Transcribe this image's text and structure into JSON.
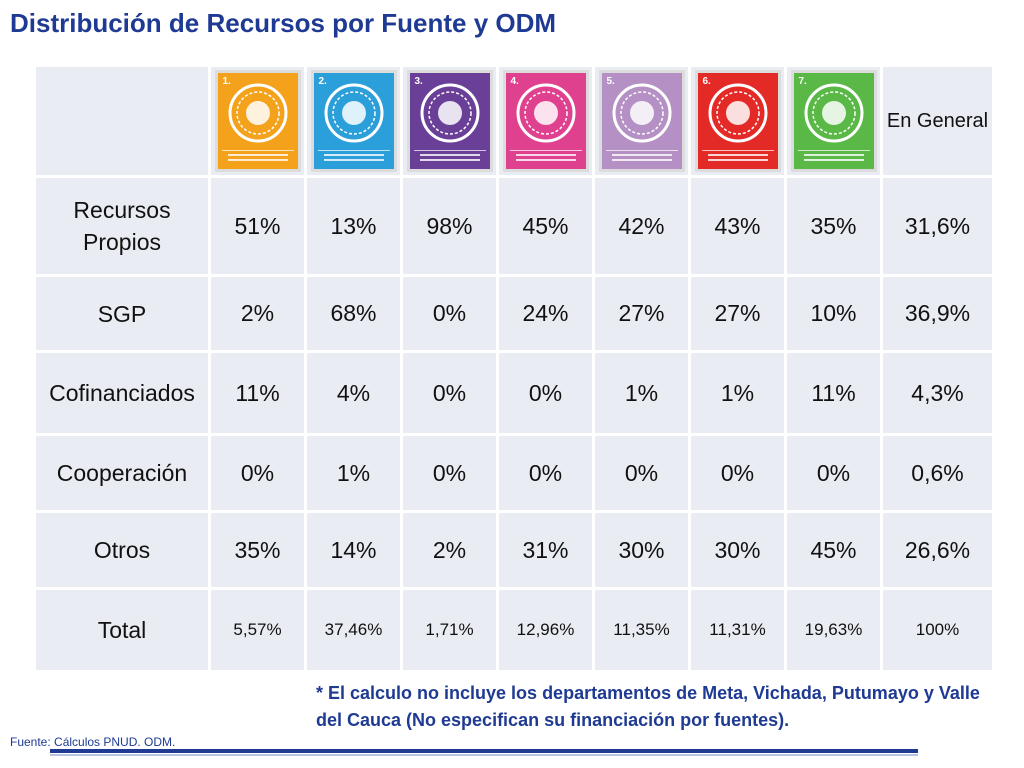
{
  "title": "Distribución de Recursos por Fuente y ODM",
  "table": {
    "general_header": "En General",
    "goals": [
      {
        "number": "1.",
        "color": "#f4a11c",
        "icon": "goal-1-poverty-hunger-icon"
      },
      {
        "number": "2.",
        "color": "#2b9fd9",
        "icon": "goal-2-education-owl-icon"
      },
      {
        "number": "3.",
        "color": "#6a3f98",
        "icon": "goal-3-gender-equality-icon"
      },
      {
        "number": "4.",
        "color": "#e0418f",
        "icon": "goal-4-child-mortality-icon"
      },
      {
        "number": "5.",
        "color": "#b590c4",
        "icon": "goal-5-maternal-health-icon"
      },
      {
        "number": "6.",
        "color": "#e42a26",
        "icon": "goal-6-hiv-malaria-icon"
      },
      {
        "number": "7.",
        "color": "#5ab946",
        "icon": "goal-7-environment-icon"
      }
    ],
    "rows": [
      {
        "label": "Recursos Propios",
        "values": [
          "51%",
          "13%",
          "98%",
          "45%",
          "42%",
          "43%",
          "35%",
          "31,6%"
        ]
      },
      {
        "label": "SGP",
        "values": [
          "2%",
          "68%",
          "0%",
          "24%",
          "27%",
          "27%",
          "10%",
          "36,9%"
        ]
      },
      {
        "label": "Cofinanciados",
        "values": [
          "11%",
          "4%",
          "0%",
          "0%",
          "1%",
          "1%",
          "11%",
          "4,3%"
        ]
      },
      {
        "label": "Cooperación",
        "values": [
          "0%",
          "1%",
          "0%",
          "0%",
          "0%",
          "0%",
          "0%",
          "0,6%"
        ]
      },
      {
        "label": "Otros",
        "values": [
          "35%",
          "14%",
          "2%",
          "31%",
          "30%",
          "30%",
          "45%",
          "26,6%"
        ]
      },
      {
        "label": "Total",
        "values": [
          "5,57%",
          "37,46%",
          "1,71%",
          "12,96%",
          "11,35%",
          "11,31%",
          "19,63%",
          "100%"
        ]
      }
    ]
  },
  "note": "* El calculo no incluye los departamentos de Meta, Vichada, Putumayo y Valle del Cauca (No especifican su financiación por fuentes).",
  "source": "Fuente: Cálculos PNUD. ODM.",
  "colors": {
    "title": "#1f3a93",
    "cell_bg": "#e9ecf3"
  }
}
